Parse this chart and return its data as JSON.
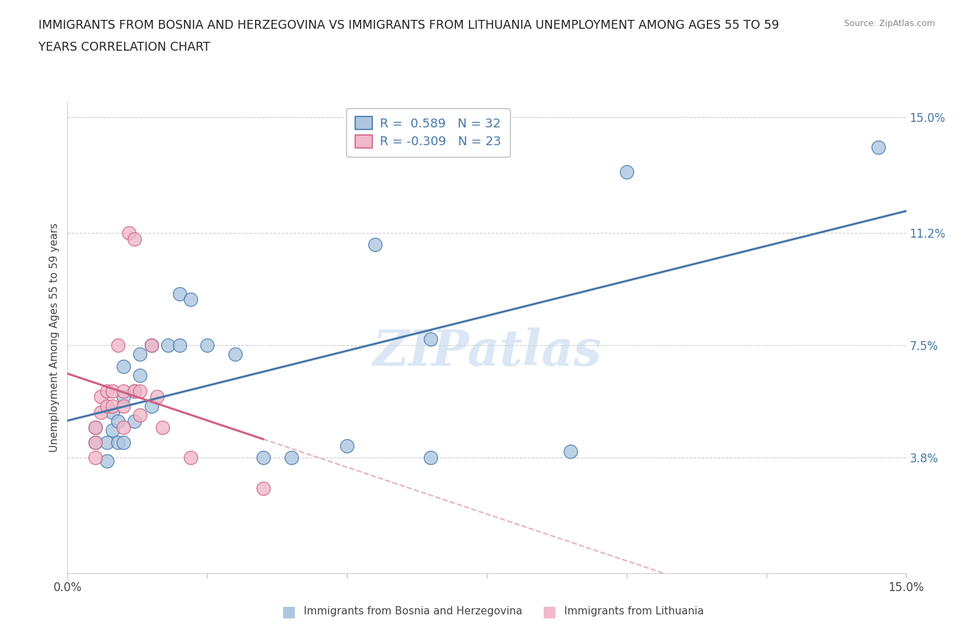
{
  "title_line1": "IMMIGRANTS FROM BOSNIA AND HERZEGOVINA VS IMMIGRANTS FROM LITHUANIA UNEMPLOYMENT AMONG AGES 55 TO 59",
  "title_line2": "YEARS CORRELATION CHART",
  "source": "Source: ZipAtlas.com",
  "ylabel": "Unemployment Among Ages 55 to 59 years",
  "xlim": [
    0.0,
    0.15
  ],
  "ylim": [
    0.0,
    0.155
  ],
  "r_bosnia": 0.589,
  "n_bosnia": 32,
  "r_lithuania": -0.309,
  "n_lithuania": 23,
  "bosnia_color": "#adc6e0",
  "bosnia_line_color": "#4477aa",
  "lithuania_color": "#f0b8c8",
  "lithuania_line_color": "#d06080",
  "watermark": "ZIPatlas",
  "watermark_color": "#ccddf0",
  "legend_label_bosnia": "Immigrants from Bosnia and Herzegovina",
  "legend_label_lithuania": "Immigrants from Lithuania",
  "bosnia_x": [
    0.005,
    0.005,
    0.007,
    0.007,
    0.008,
    0.008,
    0.009,
    0.009,
    0.01,
    0.01,
    0.01,
    0.012,
    0.012,
    0.013,
    0.013,
    0.015,
    0.015,
    0.018,
    0.02,
    0.02,
    0.022,
    0.025,
    0.03,
    0.035,
    0.04,
    0.05,
    0.055,
    0.065,
    0.065,
    0.09,
    0.1,
    0.145
  ],
  "bosnia_y": [
    0.048,
    0.043,
    0.043,
    0.037,
    0.053,
    0.047,
    0.05,
    0.043,
    0.068,
    0.058,
    0.043,
    0.06,
    0.05,
    0.072,
    0.065,
    0.075,
    0.055,
    0.075,
    0.092,
    0.075,
    0.09,
    0.075,
    0.072,
    0.038,
    0.038,
    0.042,
    0.108,
    0.077,
    0.038,
    0.04,
    0.132,
    0.14
  ],
  "lithuania_x": [
    0.005,
    0.005,
    0.005,
    0.006,
    0.006,
    0.007,
    0.007,
    0.008,
    0.008,
    0.009,
    0.01,
    0.01,
    0.01,
    0.011,
    0.012,
    0.012,
    0.013,
    0.013,
    0.015,
    0.016,
    0.017,
    0.022,
    0.035
  ],
  "lithuania_y": [
    0.048,
    0.043,
    0.038,
    0.058,
    0.053,
    0.06,
    0.055,
    0.06,
    0.055,
    0.075,
    0.06,
    0.055,
    0.048,
    0.112,
    0.11,
    0.06,
    0.06,
    0.052,
    0.075,
    0.058,
    0.048,
    0.038,
    0.028
  ],
  "ytick_positions": [
    0.038,
    0.075,
    0.112,
    0.15
  ],
  "ytick_labels": [
    "3.8%",
    "7.5%",
    "11.2%",
    "15.0%"
  ]
}
